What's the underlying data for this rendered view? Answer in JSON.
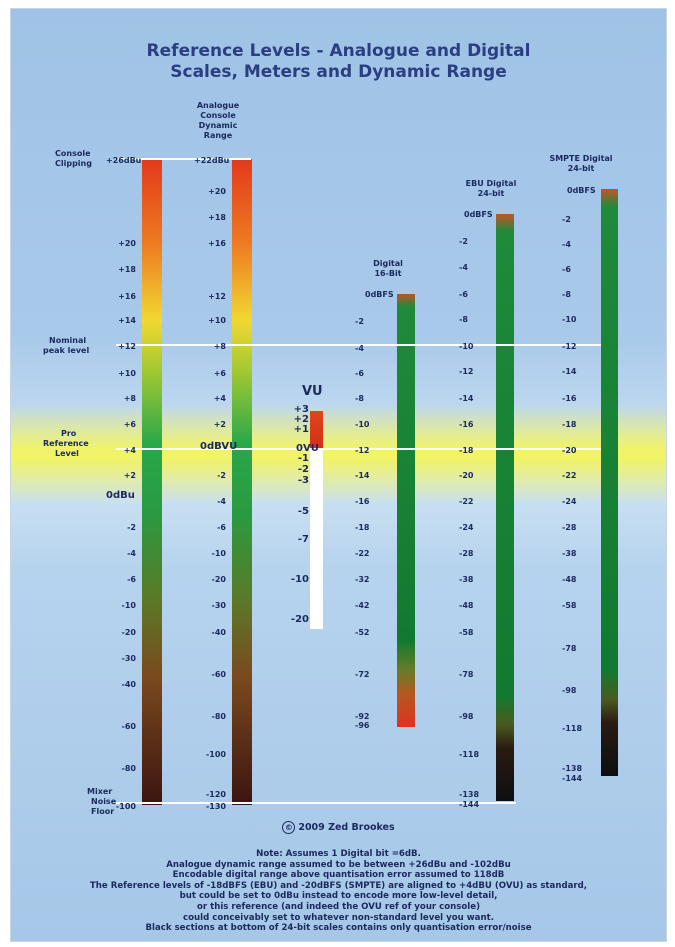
{
  "title": [
    "Reference Levels - Analogue and Digital",
    "Scales, Meters and Dynamic Range"
  ],
  "column_headers": {
    "analogue_dynamic_range": [
      "Analogue",
      "Console",
      "Dynamic",
      "Range"
    ],
    "vu": "VU",
    "digital16": [
      "Digital",
      "16-Bit"
    ],
    "ebu24": [
      "EBU Digital",
      "24-bit"
    ],
    "smpte24": [
      "SMPTE Digital",
      "24-bit"
    ]
  },
  "left_labels": {
    "console_clipping": [
      "Console",
      "Clipping"
    ],
    "nominal_peak": [
      "Nominal",
      "peak level"
    ],
    "pro_reference": [
      "Pro",
      "Reference",
      "Level"
    ],
    "mixer_noise_floor": [
      "Mixer",
      "Noise",
      "Floor"
    ]
  },
  "special_labels": {
    "odbu": "0dBu",
    "odbvu": "0dBVU",
    "ovu": "0VU",
    "odbfs": "0dBFS"
  },
  "scales": {
    "dbu": [
      "+26dBu",
      "+20",
      "+18",
      "+16",
      "+14",
      "+12",
      "+10",
      "+8",
      "+6",
      "+4",
      "+2",
      "-2",
      "-4",
      "-6",
      "-10",
      "-20",
      "-30",
      "-40",
      "-60",
      "-80",
      "-100"
    ],
    "console": [
      "+22dBu",
      "+20",
      "+18",
      "+16",
      "+12",
      "+10",
      "+8",
      "+6",
      "+4",
      "+2",
      "-2",
      "-4",
      "-6",
      "-10",
      "-20",
      "-30",
      "-40",
      "-60",
      "-80",
      "-100",
      "-120",
      "-130"
    ],
    "vu": [
      "+3",
      "+2",
      "+1",
      "-1",
      "-2",
      "-3",
      "-5",
      "-7",
      "-10",
      "-20"
    ],
    "digital16": [
      "-2",
      "-4",
      "-6",
      "-8",
      "-10",
      "-12",
      "-14",
      "-16",
      "-18",
      "-22",
      "-32",
      "-42",
      "-52",
      "-72",
      "-92",
      "-96"
    ],
    "ebu24": [
      "-2",
      "-4",
      "-6",
      "-8",
      "-10",
      "-12",
      "-14",
      "-16",
      "-18",
      "-20",
      "-22",
      "-24",
      "-28",
      "-38",
      "-48",
      "-58",
      "-78",
      "-98",
      "-118",
      "-138",
      "-144"
    ],
    "smpte24": [
      "-2",
      "-4",
      "-6",
      "-8",
      "-10",
      "-12",
      "-14",
      "-16",
      "-18",
      "-20",
      "-22",
      "-24",
      "-28",
      "-38",
      "-48",
      "-58",
      "-78",
      "-98",
      "-118",
      "-138",
      "-144"
    ]
  },
  "copyright": "2009 Zed Brookes",
  "notes": [
    "Note: Assumes 1 Digital bit =6dB.",
    "Analogue dynamic range assumed to be between +26dBu and -102dBu",
    "Encodable digital range above quantisation error assumed to 118dB",
    "The Reference levels of -18dBFS (EBU) and -20dBFS (SMPTE) are aligned to +4dBU (OVU) as standard,",
    "but could be set to 0dBu instead to encode more low-level detail,",
    "or this reference (and indeed the OVU ref of your console)",
    "could conceivably set to whatever non-standard level you want.",
    "Black sections at bottom of 24-bit scales contains only quantisation error/noise"
  ]
}
